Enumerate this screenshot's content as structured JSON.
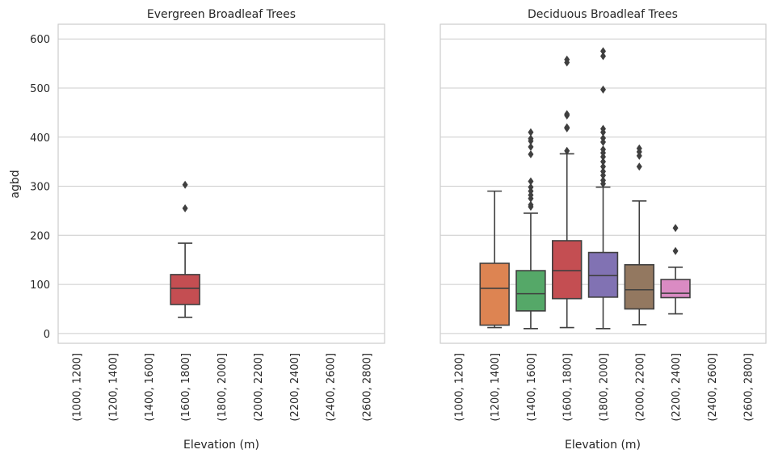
{
  "chart_data": {
    "type": "boxplot",
    "ylabel": "agbd",
    "ylim": [
      -20,
      630
    ],
    "y_ticks": [
      "0",
      "100",
      "200",
      "300",
      "400",
      "500",
      "600"
    ],
    "categories": [
      "(1000, 1200]",
      "(1200, 1400]",
      "(1400, 1600]",
      "(1600, 1800]",
      "(1800, 2000]",
      "(2000, 2200]",
      "(2200, 2400]",
      "(2400, 2600]",
      "(2600, 2800]"
    ],
    "grid": "horizontal",
    "colors": [
      "#4c72b0",
      "#dd8452",
      "#55a868",
      "#c44e52",
      "#8172b3",
      "#937860",
      "#da8bc3",
      "#8c8c8c",
      "#ccb974"
    ],
    "panels": [
      {
        "title": "Evergreen Broadleaf Trees",
        "xlabel": "Elevation (m)",
        "boxes": [
          {
            "category": "(1600, 1800]",
            "whisker_low": 33,
            "q1": 59,
            "median": 92,
            "q3": 120,
            "whisker_high": 184,
            "outliers": [
              255,
              303
            ]
          }
        ]
      },
      {
        "title": "Deciduous Broadleaf Trees",
        "xlabel": "Elevation (m)",
        "boxes": [
          {
            "category": "(1200, 1400]",
            "whisker_low": 12,
            "q1": 17,
            "median": 92,
            "q3": 143,
            "whisker_high": 290,
            "outliers": []
          },
          {
            "category": "(1400, 1600]",
            "whisker_low": 10,
            "q1": 46,
            "median": 81,
            "q3": 128,
            "whisker_high": 245,
            "outliers": [
              258,
              262,
              275,
              282,
              290,
              298,
              310,
              365,
              380,
              392,
              397,
              410
            ]
          },
          {
            "category": "(1600, 1800]",
            "whisker_low": 12,
            "q1": 71,
            "median": 128,
            "q3": 189,
            "whisker_high": 366,
            "outliers": [
              372,
              418,
              420,
              444,
              447,
              552,
              558
            ]
          },
          {
            "category": "(1800, 2000]",
            "whisker_low": 10,
            "q1": 74,
            "median": 118,
            "q3": 165,
            "whisker_high": 298,
            "outliers": [
              305,
              312,
              322,
              330,
              340,
              350,
              360,
              368,
              375,
              390,
              398,
              410,
              417,
              497,
              565,
              575
            ]
          },
          {
            "category": "(2000, 2200]",
            "whisker_low": 18,
            "q1": 50,
            "median": 89,
            "q3": 140,
            "whisker_high": 270,
            "outliers": [
              340,
              362,
              370,
              377
            ]
          },
          {
            "category": "(2200, 2400]",
            "whisker_low": 40,
            "q1": 73,
            "median": 82,
            "q3": 110,
            "whisker_high": 135,
            "outliers": [
              168,
              215
            ]
          }
        ]
      }
    ]
  }
}
